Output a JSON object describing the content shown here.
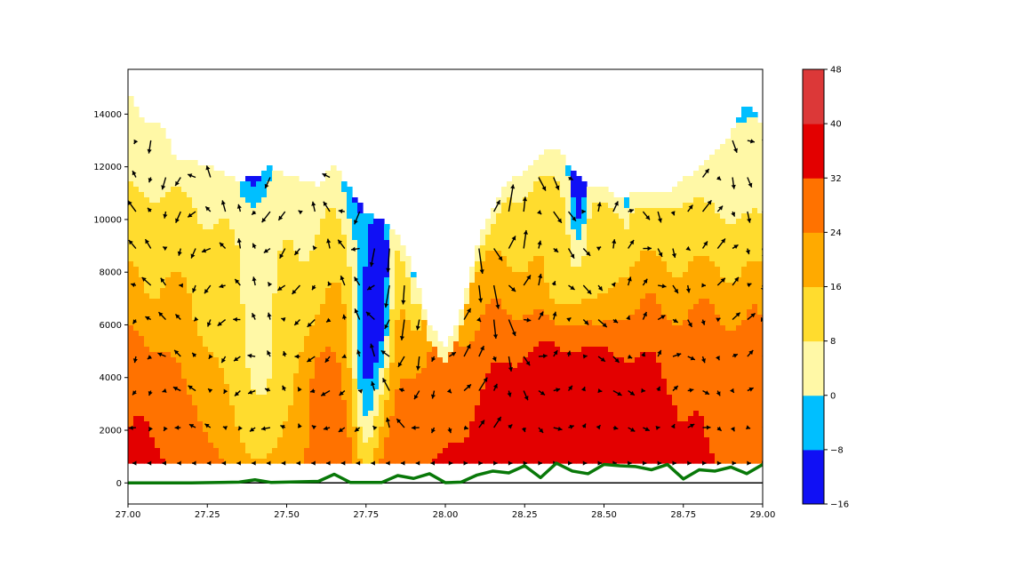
{
  "chart_data": {
    "type": "filled-contour-with-quiver",
    "title": "",
    "xlabel": "",
    "ylabel": "",
    "xlim": [
      27.0,
      29.0
    ],
    "ylim": [
      -800,
      15700
    ],
    "x_ticks": [
      27.0,
      27.25,
      27.5,
      27.75,
      28.0,
      28.25,
      28.5,
      28.75,
      29.0
    ],
    "x_tick_labels": [
      "27.00",
      "27.25",
      "27.50",
      "27.75",
      "28.00",
      "28.25",
      "28.50",
      "28.75",
      "29.00"
    ],
    "y_ticks": [
      0,
      2000,
      4000,
      6000,
      8000,
      10000,
      12000,
      14000
    ],
    "y_tick_labels": [
      "0",
      "2000",
      "4000",
      "6000",
      "8000",
      "10000",
      "12000",
      "14000"
    ],
    "data_floor_y": 750,
    "colorbar": {
      "levels": [
        -16,
        -8,
        0,
        8,
        16,
        24,
        32,
        40,
        48
      ],
      "tick_labels": [
        "−16",
        "−8",
        "0",
        "8",
        "16",
        "24",
        "32",
        "40",
        "48"
      ],
      "colors": [
        "#1010f5",
        "#00bfff",
        "#fff8a6",
        "#ffdc2e",
        "#ffaa00",
        "#ff7200",
        "#e30000",
        "#dc3838"
      ]
    },
    "terrain_line": {
      "color": "#087808",
      "x": [
        27.0,
        27.2,
        27.35,
        27.4,
        27.45,
        27.6,
        27.65,
        27.7,
        27.8,
        27.85,
        27.9,
        27.95,
        28.0,
        28.05,
        28.1,
        28.15,
        28.2,
        28.25,
        28.3,
        28.35,
        28.4,
        28.45,
        28.5,
        28.55,
        28.6,
        28.65,
        28.7,
        28.75,
        28.8,
        28.85,
        28.9,
        28.95,
        29.0
      ],
      "y": [
        0,
        0,
        30,
        120,
        20,
        60,
        330,
        20,
        20,
        280,
        170,
        350,
        10,
        30,
        300,
        450,
        380,
        650,
        200,
        750,
        450,
        350,
        700,
        650,
        620,
        500,
        700,
        150,
        500,
        450,
        600,
        350,
        700
      ]
    },
    "zero_line": {
      "y": 0,
      "color": "#000000"
    },
    "bands": [
      {
        "x": [
          27.0,
          27.05,
          27.1,
          27.15,
          27.2,
          27.25,
          27.3,
          27.35,
          27.4,
          27.45,
          27.5,
          27.55,
          27.6,
          27.65,
          27.7,
          27.75,
          27.8,
          27.85,
          27.9,
          27.95,
          28.0,
          28.05,
          28.1,
          28.15,
          28.2,
          28.25,
          28.3,
          28.35,
          28.4,
          28.45,
          28.5,
          28.55,
          28.6,
          28.65,
          28.7,
          28.75,
          28.8,
          28.85,
          28.9,
          28.95,
          29.0
        ],
        "top": [
          14800,
          13700,
          13700,
          12300,
          12300,
          12000,
          11800,
          11500,
          11600,
          12000,
          11700,
          11500,
          11300,
          12200,
          11100,
          10200,
          10000,
          9500,
          8000,
          6000,
          5100,
          6500,
          9000,
          10500,
          11500,
          11800,
          12500,
          12800,
          11900,
          11200,
          11200,
          10800,
          11000,
          11000,
          11000,
          11500,
          12000,
          12500,
          13200,
          14500,
          13500
        ]
      }
    ]
  }
}
